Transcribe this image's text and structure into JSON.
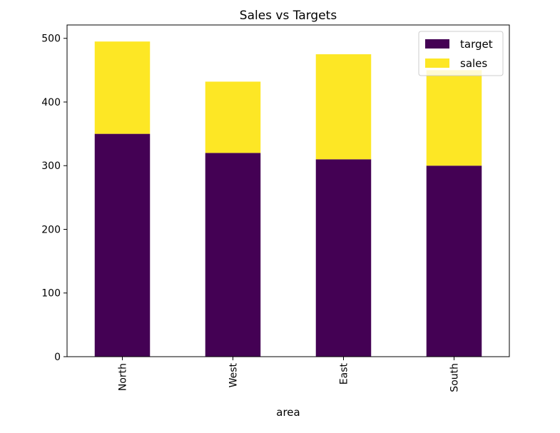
{
  "chart_data": {
    "type": "bar",
    "stacked": true,
    "title": "Sales vs Targets",
    "xlabel": "area",
    "ylabel": "",
    "categories": [
      "North",
      "West",
      "East",
      "South"
    ],
    "series": [
      {
        "name": "target",
        "values": [
          350,
          320,
          310,
          300
        ],
        "color": "#440154"
      },
      {
        "name": "sales",
        "values": [
          145,
          112,
          165,
          150
        ],
        "color": "#fde725"
      }
    ],
    "ylim": [
      0,
      521
    ],
    "yticks": [
      0,
      100,
      200,
      300,
      400,
      500
    ],
    "legend_position": "top-right",
    "grid": false
  }
}
